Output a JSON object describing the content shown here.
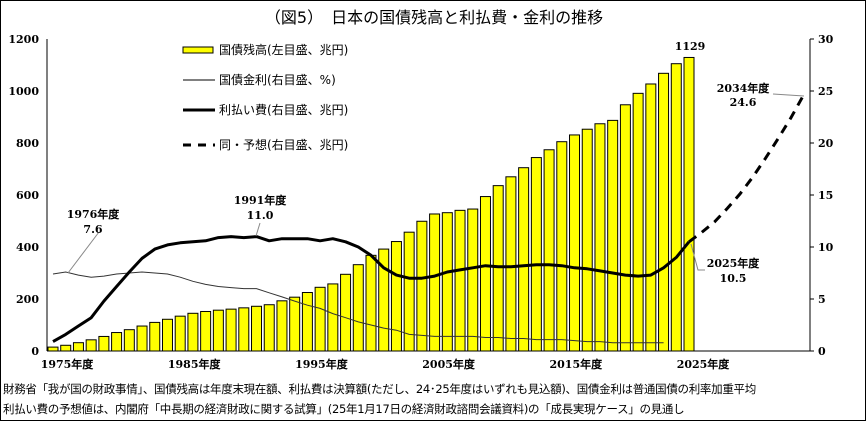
{
  "chart_data": {
    "type": "bar+line",
    "title": "（図5）　日本の国債残高と利払費・金利の推移",
    "years": [
      1975,
      1976,
      1977,
      1978,
      1979,
      1980,
      1981,
      1982,
      1983,
      1984,
      1985,
      1986,
      1987,
      1988,
      1989,
      1990,
      1991,
      1992,
      1993,
      1994,
      1995,
      1996,
      1997,
      1998,
      1999,
      2000,
      2001,
      2002,
      2003,
      2004,
      2005,
      2006,
      2007,
      2008,
      2009,
      2010,
      2011,
      2012,
      2013,
      2014,
      2015,
      2016,
      2017,
      2018,
      2019,
      2020,
      2021,
      2022,
      2023,
      2024,
      2025
    ],
    "series": [
      {
        "name": "国債残高(左目盛、兆円)",
        "type": "bar",
        "axis": "left",
        "color": "#ffff00",
        "values": [
          15,
          22,
          32,
          43,
          56,
          71,
          82,
          96,
          110,
          122,
          134,
          145,
          152,
          157,
          161,
          166,
          172,
          178,
          193,
          207,
          225,
          245,
          258,
          295,
          332,
          368,
          392,
          421,
          457,
          499,
          527,
          532,
          541,
          546,
          594,
          636,
          670,
          705,
          744,
          774,
          805,
          831,
          853,
          874,
          887,
          947,
          991,
          1027,
          1068,
          1105,
          1129
        ]
      },
      {
        "name": "国債金利(右目盛、%)",
        "type": "line",
        "axis": "right",
        "values": [
          7.4,
          7.6,
          7.3,
          7.1,
          7.2,
          7.4,
          7.5,
          7.6,
          7.5,
          7.4,
          7.1,
          6.7,
          6.4,
          6.2,
          6.1,
          6.0,
          6.0,
          5.6,
          5.2,
          4.8,
          4.4,
          4.1,
          3.6,
          3.2,
          2.8,
          2.5,
          2.2,
          2.0,
          1.6,
          1.5,
          1.4,
          1.4,
          1.4,
          1.4,
          1.3,
          1.3,
          1.2,
          1.2,
          1.1,
          1.1,
          1.1,
          1.0,
          0.9,
          0.9,
          0.8,
          0.8,
          0.8,
          0.8,
          0.8,
          null,
          null
        ]
      },
      {
        "name": "利払い費(右目盛、兆円)",
        "type": "line",
        "axis": "right",
        "values": [
          0.9,
          1.6,
          2.4,
          3.2,
          4.8,
          6.2,
          7.6,
          8.9,
          9.8,
          10.2,
          10.4,
          10.5,
          10.6,
          10.9,
          11.0,
          10.9,
          11.0,
          10.6,
          10.8,
          10.8,
          10.8,
          10.6,
          10.8,
          10.5,
          10.0,
          9.2,
          8.0,
          7.3,
          7.0,
          7.0,
          7.2,
          7.6,
          7.8,
          8.0,
          8.2,
          8.1,
          8.1,
          8.2,
          8.3,
          8.3,
          8.2,
          8.0,
          7.9,
          7.7,
          7.5,
          7.3,
          7.2,
          7.3,
          8.0,
          9.0,
          10.5
        ]
      },
      {
        "name": "同・予想(右目盛、兆円)",
        "type": "dashed-line",
        "axis": "right",
        "x": [
          2025,
          2026,
          2027,
          2028,
          2029,
          2030,
          2031,
          2032,
          2033,
          2034
        ],
        "values": [
          10.5,
          11.4,
          12.4,
          13.7,
          15.1,
          16.7,
          18.5,
          20.4,
          22.4,
          24.6
        ]
      }
    ],
    "left_axis": {
      "ylim": [
        0,
        1200
      ],
      "ticks": [
        "0",
        "200",
        "400",
        "600",
        "800",
        "1000",
        "1200"
      ]
    },
    "right_axis": {
      "ylim": [
        0,
        30
      ],
      "ticks": [
        "0",
        "5",
        "10",
        "15",
        "20",
        "25",
        "30"
      ]
    },
    "x_ticks": [
      "1975年度",
      "1985年度",
      "1995年度",
      "2005年度",
      "2015年度",
      "2025年度"
    ],
    "x_tick_years": [
      1975,
      1985,
      1995,
      2005,
      2015,
      2025
    ],
    "legend_placement": "top-left",
    "annotations": [
      {
        "label": "1976年度",
        "value": "7.6"
      },
      {
        "label": "1991年度",
        "value": "11.0"
      },
      {
        "label": "1129"
      },
      {
        "label": "2034年度",
        "value": "24.6"
      },
      {
        "label": "2025年度",
        "value": "10.5"
      }
    ]
  },
  "footnotes": [
    "財務省「我が国の財政事情」、国債残高は年度末現在額、利払費は決算額(ただし、24･25年度はいずれも見込額)、国債金利は普通国債の利率加重平均",
    "利払い費の予想値は、内閣府「中長期の経済財政に関する試算」(25年1月17日の経済財政諮問会議資料)の「成長実現ケース」の見通し"
  ]
}
